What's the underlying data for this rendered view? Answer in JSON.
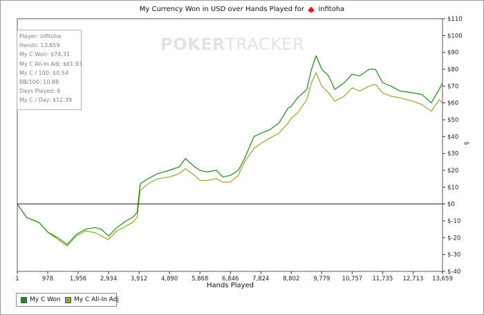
{
  "chart_data": {
    "type": "line",
    "title": "My Currency Won in USD over Hands Played for",
    "player": "infitoha",
    "xlabel": "Hands Played",
    "ylabel": "$",
    "xlim": [
      1,
      13659
    ],
    "ylim": [
      -40,
      110
    ],
    "x_ticks": [
      "1",
      "978",
      "1,956",
      "2,934",
      "3,912",
      "4,890",
      "5,868",
      "6,846",
      "7,824",
      "8,802",
      "9,779",
      "10,757",
      "11,735",
      "12,713",
      "13,659"
    ],
    "y_ticks": [
      "$110",
      "$100",
      "$90",
      "$80",
      "$70",
      "$60",
      "$50",
      "$40",
      "$30",
      "$20",
      "$10",
      "$0",
      "$-10",
      "$-20",
      "$-30",
      "$-40"
    ],
    "legend_position": "bottom-left",
    "series": [
      {
        "name": "My C Won",
        "color": "#1a8c1a",
        "points": [
          [
            1,
            0
          ],
          [
            300,
            -8
          ],
          [
            700,
            -11
          ],
          [
            1000,
            -17
          ],
          [
            1300,
            -20
          ],
          [
            1600,
            -24
          ],
          [
            1900,
            -18
          ],
          [
            2200,
            -15
          ],
          [
            2500,
            -14
          ],
          [
            2700,
            -15
          ],
          [
            2934,
            -19
          ],
          [
            3200,
            -14
          ],
          [
            3500,
            -10
          ],
          [
            3700,
            -8
          ],
          [
            3850,
            -5
          ],
          [
            3950,
            12
          ],
          [
            4200,
            15
          ],
          [
            4500,
            18
          ],
          [
            4890,
            20
          ],
          [
            5200,
            22
          ],
          [
            5400,
            27
          ],
          [
            5700,
            22
          ],
          [
            5868,
            20
          ],
          [
            6100,
            19
          ],
          [
            6400,
            20
          ],
          [
            6600,
            16
          ],
          [
            6846,
            17
          ],
          [
            7100,
            20
          ],
          [
            7300,
            27
          ],
          [
            7600,
            40
          ],
          [
            7824,
            42
          ],
          [
            8100,
            44
          ],
          [
            8400,
            48
          ],
          [
            8700,
            57
          ],
          [
            8802,
            58
          ],
          [
            9000,
            63
          ],
          [
            9300,
            68
          ],
          [
            9450,
            80
          ],
          [
            9600,
            88
          ],
          [
            9779,
            80
          ],
          [
            10000,
            76
          ],
          [
            10200,
            68
          ],
          [
            10500,
            72
          ],
          [
            10757,
            77
          ],
          [
            11000,
            76
          ],
          [
            11300,
            80
          ],
          [
            11500,
            80
          ],
          [
            11735,
            72
          ],
          [
            12000,
            70
          ],
          [
            12300,
            67
          ],
          [
            12713,
            66
          ],
          [
            13000,
            65
          ],
          [
            13300,
            60
          ],
          [
            13550,
            68
          ],
          [
            13659,
            72
          ]
        ]
      },
      {
        "name": "My C All-In Adj",
        "color": "#a0a030",
        "points": [
          [
            1,
            0
          ],
          [
            300,
            -8
          ],
          [
            700,
            -11
          ],
          [
            1000,
            -17
          ],
          [
            1300,
            -21
          ],
          [
            1600,
            -25
          ],
          [
            1900,
            -19
          ],
          [
            2200,
            -16
          ],
          [
            2500,
            -17
          ],
          [
            2700,
            -19
          ],
          [
            2934,
            -21
          ],
          [
            3200,
            -16
          ],
          [
            3500,
            -13
          ],
          [
            3700,
            -11
          ],
          [
            3850,
            -8
          ],
          [
            3950,
            8
          ],
          [
            4200,
            12
          ],
          [
            4500,
            15
          ],
          [
            4890,
            16
          ],
          [
            5200,
            18
          ],
          [
            5400,
            21
          ],
          [
            5700,
            17
          ],
          [
            5868,
            14
          ],
          [
            6100,
            14
          ],
          [
            6400,
            15
          ],
          [
            6600,
            13
          ],
          [
            6846,
            13
          ],
          [
            7100,
            17
          ],
          [
            7300,
            25
          ],
          [
            7600,
            33
          ],
          [
            7824,
            36
          ],
          [
            8100,
            39
          ],
          [
            8400,
            42
          ],
          [
            8700,
            48
          ],
          [
            8802,
            51
          ],
          [
            9000,
            54
          ],
          [
            9300,
            62
          ],
          [
            9450,
            72
          ],
          [
            9600,
            78
          ],
          [
            9779,
            70
          ],
          [
            10000,
            66
          ],
          [
            10200,
            61
          ],
          [
            10500,
            64
          ],
          [
            10757,
            69
          ],
          [
            11000,
            67
          ],
          [
            11300,
            70
          ],
          [
            11500,
            71
          ],
          [
            11735,
            66
          ],
          [
            12000,
            64
          ],
          [
            12300,
            63
          ],
          [
            12713,
            61
          ],
          [
            13000,
            59
          ],
          [
            13300,
            55
          ],
          [
            13550,
            62
          ],
          [
            13659,
            60
          ]
        ]
      }
    ]
  },
  "stats": [
    "Player: infitoha",
    "Hands: 13,659",
    "My C Won: $74.31",
    "My C All-In Adj: $61.93",
    "My C / 100: $0.54",
    "BB/100: 10.88",
    "Days Played: 6",
    "My C / Day: $12.39"
  ],
  "watermark": {
    "part1": "POKER",
    "part2": "TRACKER"
  },
  "icon": "spade-suit-icon"
}
